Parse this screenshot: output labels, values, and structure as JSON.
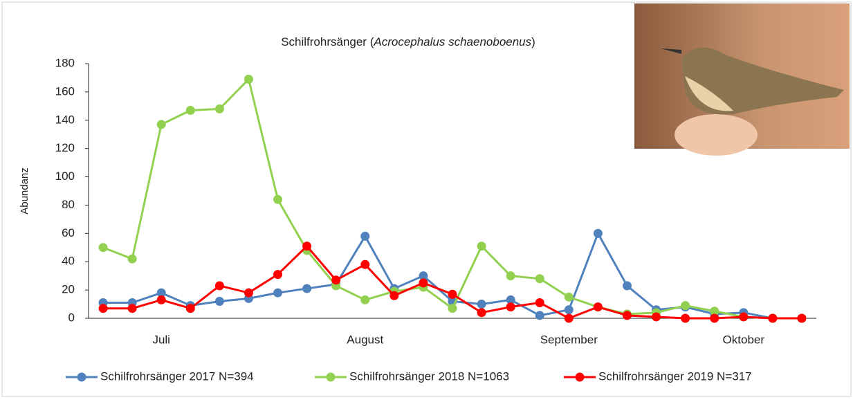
{
  "chart_data": {
    "type": "line",
    "title_parts": [
      "Schilfrohrsänger (",
      "Acrocephalus schaenoboenus",
      ")"
    ],
    "y_label": "Abundanz",
    "categories": [
      null,
      null,
      "Juli",
      null,
      null,
      null,
      null,
      null,
      null,
      "August",
      null,
      null,
      null,
      null,
      null,
      null,
      "September",
      null,
      null,
      null,
      null,
      null,
      "Oktober",
      null,
      null
    ],
    "series": [
      {
        "name": "Schilfrohrsänger 2017 N=394",
        "color": "#4f81bd",
        "values": [
          11,
          11,
          18,
          9,
          12,
          14,
          18,
          21,
          24,
          58,
          21,
          30,
          12,
          10,
          13,
          2,
          6,
          60,
          23,
          6,
          8,
          3,
          4,
          0,
          0
        ]
      },
      {
        "name": "Schilfrohrsänger 2018 N=1063",
        "color": "#92d050",
        "values": [
          50,
          42,
          137,
          147,
          148,
          169,
          84,
          48,
          23,
          13,
          19,
          22,
          7,
          51,
          30,
          28,
          15,
          8,
          3,
          4,
          9,
          5,
          1,
          0,
          0
        ]
      },
      {
        "name": "Schilfrohrsänger 2019 N=317",
        "color": "#ff0000",
        "values": [
          7,
          7,
          13,
          7,
          23,
          18,
          31,
          51,
          27,
          38,
          16,
          25,
          17,
          4,
          8,
          11,
          0,
          8,
          2,
          1,
          0,
          0,
          1,
          0,
          0
        ]
      }
    ],
    "ylim": [
      0,
      180
    ],
    "yticks": [
      0,
      20,
      40,
      60,
      80,
      100,
      120,
      140,
      160,
      180
    ],
    "grid": false,
    "legend": "bottom"
  }
}
